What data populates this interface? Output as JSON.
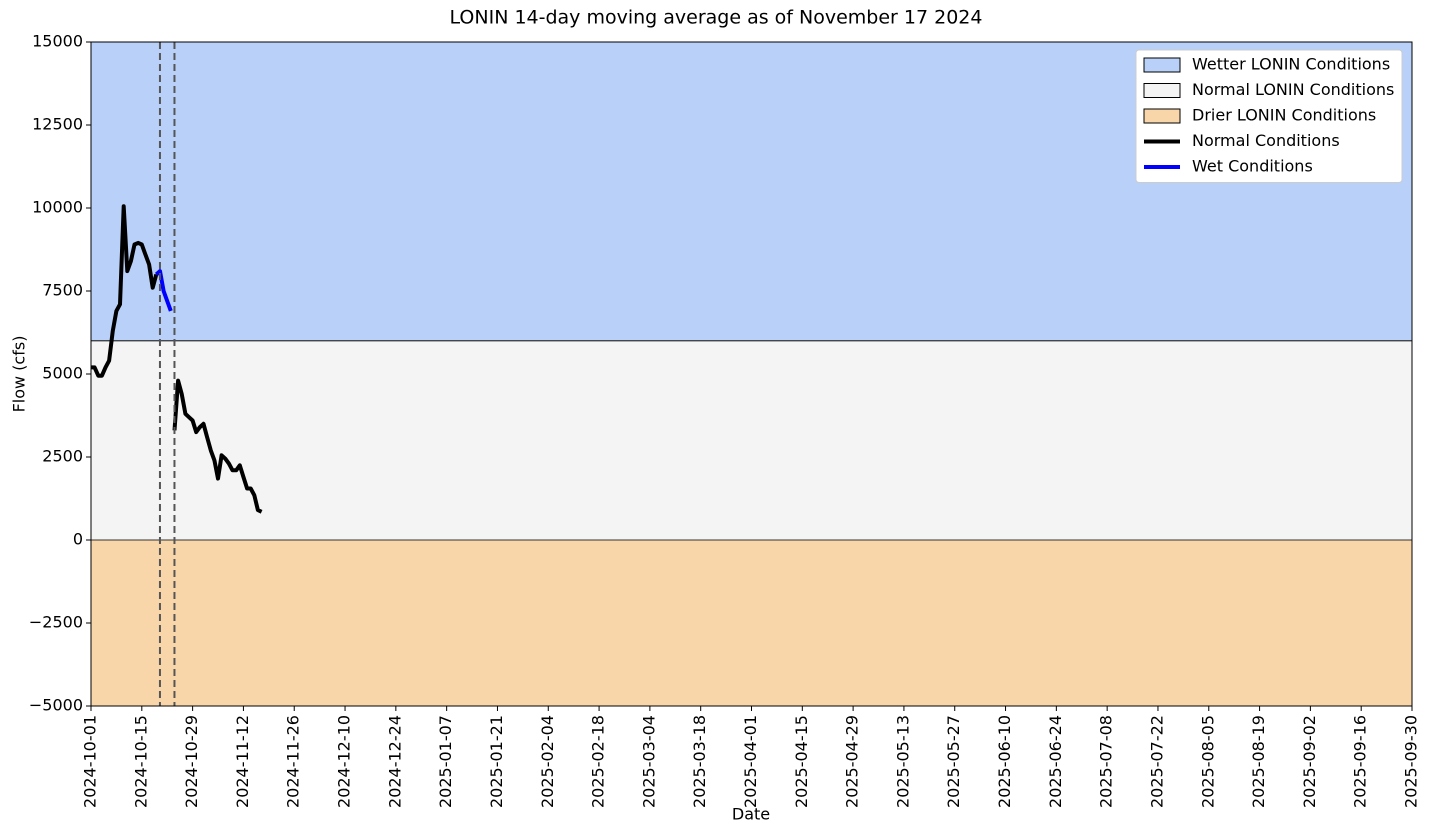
{
  "chart_data": {
    "type": "line",
    "title": "LONIN 14-day moving average as of November 17 2024",
    "x_label": "Date",
    "y_label": "Flow (cfs)",
    "x": [
      "2024-10-01",
      "2024-10-02",
      "2024-10-03",
      "2024-10-04",
      "2024-10-05",
      "2024-10-06",
      "2024-10-07",
      "2024-10-08",
      "2024-10-09",
      "2024-10-10",
      "2024-10-11",
      "2024-10-12",
      "2024-10-13",
      "2024-10-14",
      "2024-10-15",
      "2024-10-16",
      "2024-10-17",
      "2024-10-18",
      "2024-10-19",
      "2024-10-20",
      "2024-10-21",
      "2024-10-22",
      "2024-10-23",
      "2024-10-24",
      "2024-10-25",
      "2024-10-26",
      "2024-10-27",
      "2024-10-28",
      "2024-10-29",
      "2024-10-30",
      "2024-10-31",
      "2024-11-01",
      "2024-11-02",
      "2024-11-03",
      "2024-11-04",
      "2024-11-05",
      "2024-11-06",
      "2024-11-07",
      "2024-11-08",
      "2024-11-09",
      "2024-11-10",
      "2024-11-11",
      "2024-11-12",
      "2024-11-13",
      "2024-11-14",
      "2024-11-15",
      "2024-11-16",
      "2024-11-17"
    ],
    "series": [
      {
        "name": "Normal Conditions",
        "color": "#000000",
        "values": [
          5200,
          5200,
          4950,
          4950,
          5200,
          5400,
          6300,
          6900,
          7100,
          10050,
          8100,
          8400,
          8900,
          8950,
          8900,
          8600,
          8300,
          7600,
          8000,
          null,
          null,
          null,
          null,
          3300,
          4800,
          4400,
          3800,
          3700,
          3600,
          3250,
          3400,
          3500,
          3100,
          2700,
          2400,
          1850,
          2550,
          2450,
          2300,
          2100,
          2100,
          2250,
          1900,
          1550,
          1550,
          1350,
          900,
          850
        ]
      },
      {
        "name": "Wet Conditions",
        "color": "#0000ff",
        "values": [
          null,
          null,
          null,
          null,
          null,
          null,
          null,
          null,
          null,
          null,
          null,
          null,
          null,
          null,
          null,
          null,
          null,
          null,
          8000,
          8100,
          7500,
          7200,
          6900,
          null,
          null,
          null,
          null,
          null,
          null,
          null,
          null,
          null,
          null,
          null,
          null,
          null,
          null,
          null,
          null,
          null,
          null,
          null,
          null,
          null,
          null,
          null,
          null,
          null
        ]
      }
    ],
    "bands": [
      {
        "name": "Wetter LONIN Conditions",
        "color": "#b9d0f8",
        "range": [
          6000,
          15000
        ]
      },
      {
        "name": "Normal LONIN Conditions",
        "color": "#f4f4f4",
        "range": [
          0,
          6000
        ]
      },
      {
        "name": "Drier LONIN Conditions",
        "color": "#f8d6aa",
        "range": [
          -5000,
          0
        ]
      }
    ],
    "vlines": [
      "2024-10-20",
      "2024-10-24"
    ],
    "xlim": [
      "2024-10-01",
      "2025-09-30"
    ],
    "xticks": [
      "2024-10-01",
      "2024-10-15",
      "2024-10-29",
      "2024-11-12",
      "2024-11-26",
      "2024-12-10",
      "2024-12-24",
      "2025-01-07",
      "2025-01-21",
      "2025-02-04",
      "2025-02-18",
      "2025-03-04",
      "2025-03-18",
      "2025-04-01",
      "2025-04-15",
      "2025-04-29",
      "2025-05-13",
      "2025-05-27",
      "2025-06-10",
      "2025-06-24",
      "2025-07-08",
      "2025-07-22",
      "2025-08-05",
      "2025-08-19",
      "2025-09-02",
      "2025-09-16",
      "2025-09-30"
    ],
    "ylim": [
      -5000,
      15000
    ],
    "yticks": [
      {
        "value": -5000,
        "label": "−5000"
      },
      {
        "value": -2500,
        "label": "−2500"
      },
      0,
      2500,
      5000,
      7500,
      10000,
      12500,
      15000
    ],
    "legend": "upper right"
  }
}
